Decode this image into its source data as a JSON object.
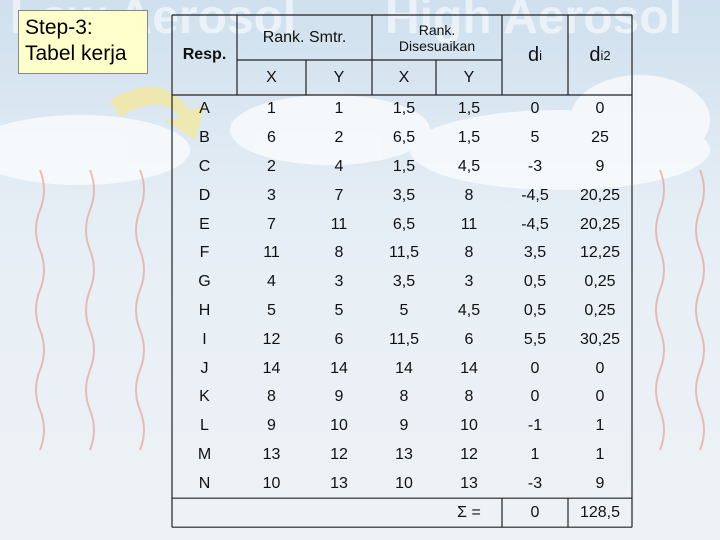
{
  "background": {
    "words": [
      "Low Aerosol",
      "High Aerosol"
    ]
  },
  "title": {
    "lines": [
      "Step-3:",
      "Tabel kerja"
    ]
  },
  "table": {
    "headers": {
      "resp": "Resp.",
      "rank_smtr": "Rank. Smtr.",
      "rank_disesuaikan": [
        "Rank.",
        "Disesuaikan"
      ],
      "d": {
        "base": "d",
        "sub": "i"
      },
      "d2": {
        "base": "d",
        "sub": "i",
        "sup": "2"
      },
      "sub": [
        "X",
        "Y",
        "X",
        "Y"
      ]
    },
    "rows": [
      [
        "A",
        "1",
        "1",
        "1,5",
        "1,5",
        "0",
        "0"
      ],
      [
        "B",
        "6",
        "2",
        "6,5",
        "1,5",
        "5",
        "25"
      ],
      [
        "C",
        "2",
        "4",
        "1,5",
        "4,5",
        "-3",
        "9"
      ],
      [
        "D",
        "3",
        "7",
        "3,5",
        "8",
        "-4,5",
        "20,25"
      ],
      [
        "E",
        "7",
        "11",
        "6,5",
        "11",
        "-4,5",
        "20,25"
      ],
      [
        "F",
        "11",
        "8",
        "11,5",
        "8",
        "3,5",
        "12,25"
      ],
      [
        "G",
        "4",
        "3",
        "3,5",
        "3",
        "0,5",
        "0,25"
      ],
      [
        "H",
        "5",
        "5",
        "5",
        "4,5",
        "0,5",
        "0,25"
      ],
      [
        "I",
        "12",
        "6",
        "11,5",
        "6",
        "5,5",
        "30,25"
      ],
      [
        "J",
        "14",
        "14",
        "14",
        "14",
        "0",
        "0"
      ],
      [
        "K",
        "8",
        "9",
        "8",
        "8",
        "0",
        "0"
      ],
      [
        "L",
        "9",
        "10",
        "9",
        "10",
        "-1",
        "1"
      ],
      [
        "M",
        "13",
        "12",
        "13",
        "12",
        "1",
        "1"
      ],
      [
        "N",
        "10",
        "13",
        "10",
        "13",
        "-3",
        "9"
      ]
    ],
    "footer": {
      "label": "Σ =",
      "d": "0",
      "d2": "128,5"
    }
  }
}
